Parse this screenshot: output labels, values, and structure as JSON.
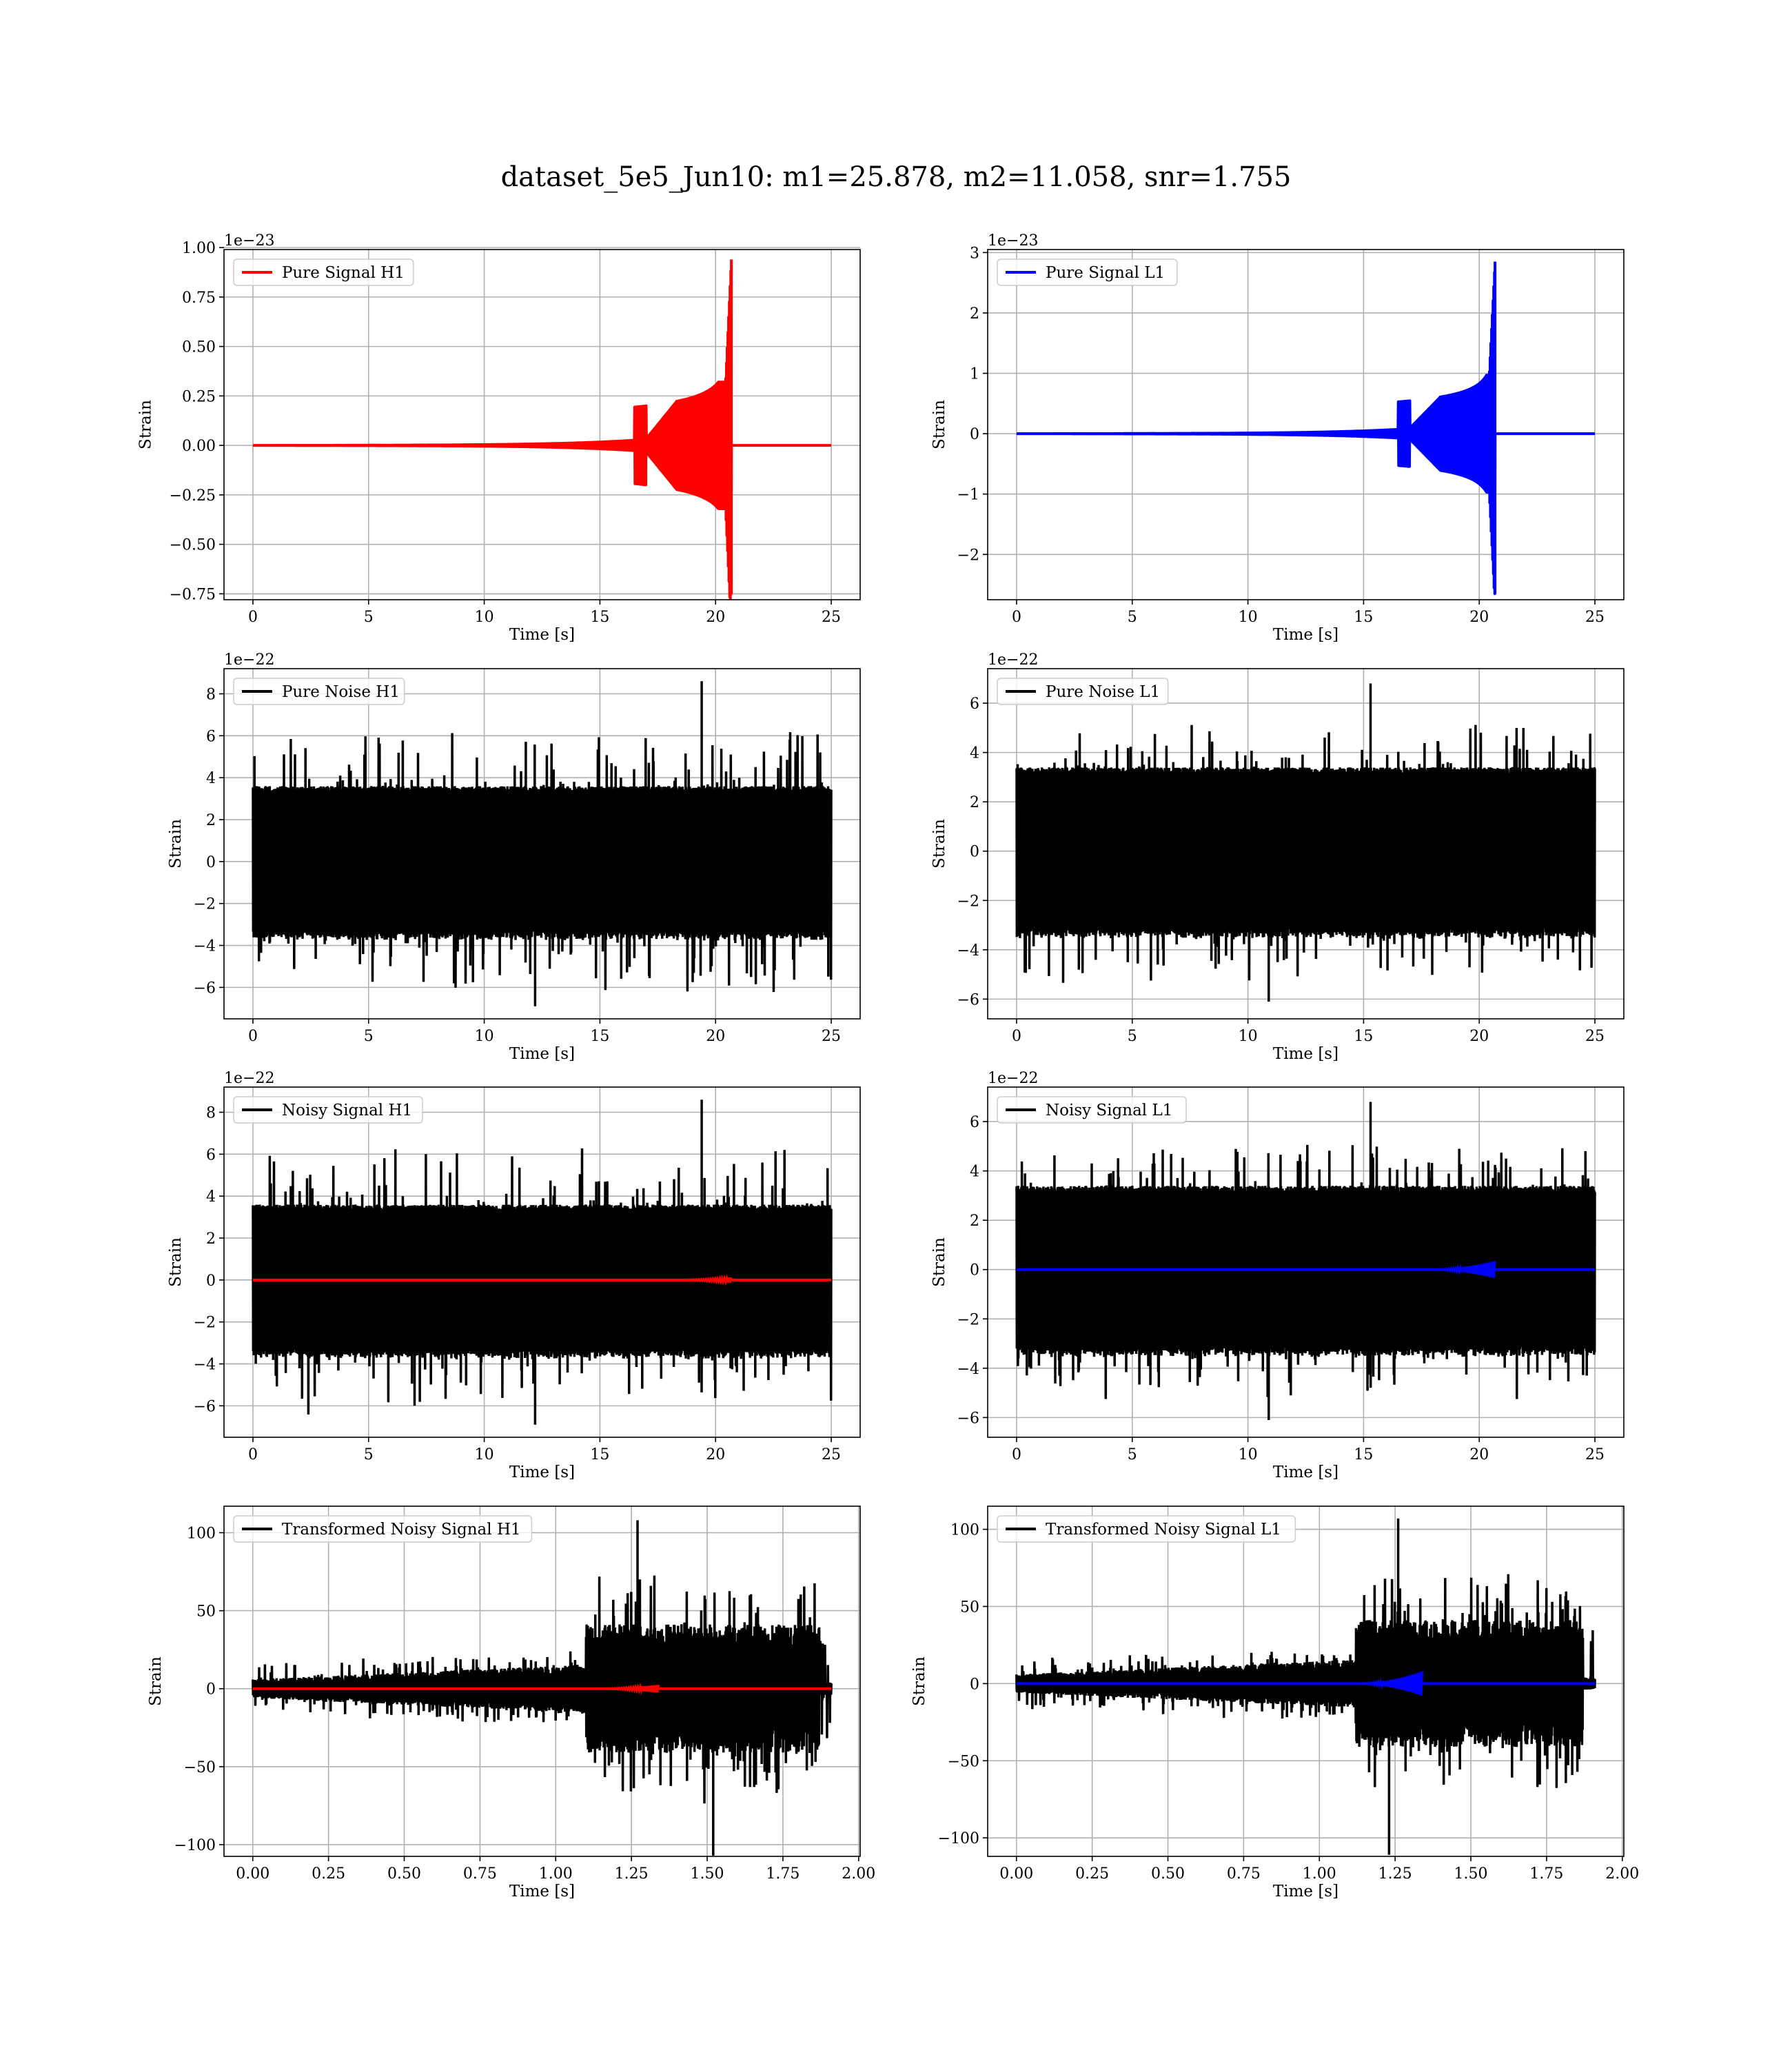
{
  "suptitle": "dataset_5e5_Jun10: m1=25.878, m2=11.058, snr=1.755",
  "colors": {
    "h1": "#ff0000",
    "l1": "#0000ff",
    "noise": "#000000",
    "grid": "#b0b0b0"
  },
  "chart_data": [
    {
      "type": "line",
      "legend": "Pure Signal H1",
      "xlabel": "Time [s]",
      "ylabel": "Strain",
      "offset": "1e−23",
      "xlim": [
        -1.25,
        26.25
      ],
      "ylim": [
        -0.78,
        0.99
      ],
      "xticks": [
        0,
        5,
        10,
        15,
        20,
        25
      ],
      "xtick_labels": [
        "0",
        "5",
        "10",
        "15",
        "20",
        "25"
      ],
      "yticks": [
        -0.75,
        -0.5,
        -0.25,
        0,
        0.25,
        0.5,
        0.75,
        1.0
      ],
      "ytick_labels": [
        "−0.75",
        "−0.50",
        "−0.25",
        "0.00",
        "0.25",
        "0.50",
        "0.75",
        "1.00"
      ],
      "series": [
        {
          "kind": "chirp",
          "color": "#ff0000",
          "x_range": [
            0,
            25
          ],
          "merger_time": 20.68,
          "peak_max": 0.94,
          "peak_min": -0.75,
          "plateau": [
            0.22,
            0.32
          ]
        }
      ]
    },
    {
      "type": "line",
      "legend": "Pure Signal L1",
      "xlabel": "Time [s]",
      "ylabel": "Strain",
      "offset": "1e−23",
      "xlim": [
        -1.25,
        26.25
      ],
      "ylim": [
        -2.75,
        3.05
      ],
      "xticks": [
        0,
        5,
        10,
        15,
        20,
        25
      ],
      "xtick_labels": [
        "0",
        "5",
        "10",
        "15",
        "20",
        "25"
      ],
      "yticks": [
        -2,
        -1,
        0,
        1,
        2,
        3
      ],
      "ytick_labels": [
        "−2",
        "−1",
        "0",
        "1",
        "2",
        "3"
      ],
      "series": [
        {
          "kind": "chirp",
          "color": "#0000ff",
          "x_range": [
            0,
            25
          ],
          "merger_time": 20.68,
          "peak_max": 2.85,
          "peak_min": -2.65,
          "plateau": [
            0.6,
            0.97
          ]
        }
      ]
    },
    {
      "type": "line",
      "legend": "Pure Noise H1",
      "xlabel": "Time [s]",
      "ylabel": "Strain",
      "offset": "1e−22",
      "xlim": [
        -1.25,
        26.25
      ],
      "ylim": [
        -7.5,
        9.2
      ],
      "xticks": [
        0,
        5,
        10,
        15,
        20,
        25
      ],
      "xtick_labels": [
        "0",
        "5",
        "10",
        "15",
        "20",
        "25"
      ],
      "yticks": [
        -6,
        -4,
        -2,
        0,
        2,
        4,
        6,
        8
      ],
      "ytick_labels": [
        "−6",
        "−4",
        "−2",
        "0",
        "2",
        "4",
        "6",
        "8"
      ],
      "series": [
        {
          "kind": "noise",
          "color": "#000000",
          "x_range": [
            0,
            25
          ],
          "core": 3.6,
          "max": 8.6,
          "min": -6.9,
          "max_at": 19.4,
          "min_at": 12.2
        }
      ]
    },
    {
      "type": "line",
      "legend": "Pure Noise L1",
      "xlabel": "Time [s]",
      "ylabel": "Strain",
      "offset": "1e−22",
      "xlim": [
        -1.25,
        26.25
      ],
      "ylim": [
        -6.8,
        7.4
      ],
      "xticks": [
        0,
        5,
        10,
        15,
        20,
        25
      ],
      "xtick_labels": [
        "0",
        "5",
        "10",
        "15",
        "20",
        "25"
      ],
      "yticks": [
        -6,
        -4,
        -2,
        0,
        2,
        4,
        6
      ],
      "ytick_labels": [
        "−6",
        "−4",
        "−2",
        "0",
        "2",
        "4",
        "6"
      ],
      "series": [
        {
          "kind": "noise",
          "color": "#000000",
          "x_range": [
            0,
            25
          ],
          "core": 3.4,
          "max": 6.8,
          "min": -6.1,
          "max_at": 15.3,
          "min_at": 10.9
        }
      ]
    },
    {
      "type": "line",
      "legend": "Noisy Signal H1",
      "xlabel": "Time [s]",
      "ylabel": "Strain",
      "offset": "1e−22",
      "xlim": [
        -1.25,
        26.25
      ],
      "ylim": [
        -7.5,
        9.2
      ],
      "xticks": [
        0,
        5,
        10,
        15,
        20,
        25
      ],
      "xtick_labels": [
        "0",
        "5",
        "10",
        "15",
        "20",
        "25"
      ],
      "yticks": [
        -6,
        -4,
        -2,
        0,
        2,
        4,
        6,
        8
      ],
      "ytick_labels": [
        "−6",
        "−4",
        "−2",
        "0",
        "2",
        "4",
        "6",
        "8"
      ],
      "series": [
        {
          "kind": "noise",
          "color": "#000000",
          "x_range": [
            0,
            25
          ],
          "core": 3.6,
          "max": 8.6,
          "min": -6.9,
          "max_at": 19.4,
          "min_at": 12.2
        },
        {
          "kind": "flat",
          "color": "#ff0000",
          "x_range": [
            0,
            25
          ],
          "merger_time": 20.68,
          "bump": 0.12
        }
      ]
    },
    {
      "type": "line",
      "legend": "Noisy Signal L1",
      "xlabel": "Time [s]",
      "ylabel": "Strain",
      "offset": "1e−22",
      "xlim": [
        -1.25,
        26.25
      ],
      "ylim": [
        -6.8,
        7.4
      ],
      "xticks": [
        0,
        5,
        10,
        15,
        20,
        25
      ],
      "xtick_labels": [
        "0",
        "5",
        "10",
        "15",
        "20",
        "25"
      ],
      "yticks": [
        -6,
        -4,
        -2,
        0,
        2,
        4,
        6
      ],
      "ytick_labels": [
        "−6",
        "−4",
        "−2",
        "0",
        "2",
        "4",
        "6"
      ],
      "series": [
        {
          "kind": "noise",
          "color": "#000000",
          "x_range": [
            0,
            25
          ],
          "core": 3.4,
          "max": 6.8,
          "min": -6.1,
          "max_at": 15.3,
          "min_at": 10.9
        },
        {
          "kind": "flat",
          "color": "#0000ff",
          "x_range": [
            0,
            25
          ],
          "merger_time": 20.68,
          "bump": 0.35
        }
      ]
    },
    {
      "type": "line",
      "legend": "Transformed Noisy Signal H1",
      "xlabel": "Time [s]",
      "ylabel": "Strain",
      "offset": "",
      "xlim": [
        -0.095,
        2.005
      ],
      "ylim": [
        -107.5,
        117
      ],
      "xticks": [
        0,
        0.25,
        0.5,
        0.75,
        1.0,
        1.25,
        1.5,
        1.75,
        2.0
      ],
      "xtick_labels": [
        "0.00",
        "0.25",
        "0.50",
        "0.75",
        "1.00",
        "1.25",
        "1.50",
        "1.75",
        "2.00"
      ],
      "yticks": [
        -100,
        -50,
        0,
        50,
        100
      ],
      "ytick_labels": [
        "−100",
        "−50",
        "0",
        "50",
        "100"
      ],
      "series": [
        {
          "kind": "transformed",
          "color": "#000000",
          "x_range": [
            0,
            1.91
          ],
          "step_at": 1.1,
          "low_amp": 12,
          "high_amp": 75,
          "max": 108,
          "min": -107,
          "max_at": 1.27,
          "min_at": 1.52
        },
        {
          "kind": "flat",
          "color": "#ff0000",
          "x_range": [
            0,
            1.91
          ],
          "merger_time": 1.34,
          "bump": 2.5
        }
      ]
    },
    {
      "type": "line",
      "legend": "Transformed Noisy Signal L1",
      "xlabel": "Time [s]",
      "ylabel": "Strain",
      "offset": "",
      "xlim": [
        -0.095,
        2.005
      ],
      "ylim": [
        -112,
        115
      ],
      "xticks": [
        0,
        0.25,
        0.5,
        0.75,
        1.0,
        1.25,
        1.5,
        1.75,
        2.0
      ],
      "xtick_labels": [
        "0.00",
        "0.25",
        "0.50",
        "0.75",
        "1.00",
        "1.25",
        "1.50",
        "1.75",
        "2.00"
      ],
      "yticks": [
        -100,
        -50,
        0,
        50,
        100
      ],
      "ytick_labels": [
        "−100",
        "−50",
        "0",
        "50",
        "100"
      ],
      "series": [
        {
          "kind": "transformed",
          "color": "#000000",
          "x_range": [
            0,
            1.91
          ],
          "step_at": 1.12,
          "low_amp": 12,
          "high_amp": 75,
          "max": 107,
          "min": -111,
          "max_at": 1.26,
          "min_at": 1.23
        },
        {
          "kind": "flat",
          "color": "#0000ff",
          "x_range": [
            0,
            1.91
          ],
          "merger_time": 1.34,
          "bump": 8
        }
      ]
    }
  ]
}
